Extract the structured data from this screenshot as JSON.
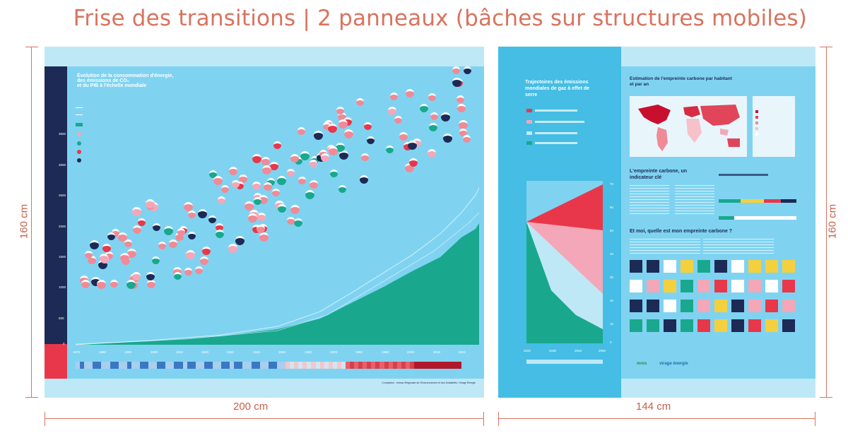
{
  "header": {
    "title": "Frise des transitions | 2 panneaux (bâches sur structures mobiles)"
  },
  "dimensions": {
    "height_label_left": "160 cm",
    "height_label_right": "160 cm",
    "width_label_left": "200 cm",
    "width_label_right": "144 cm"
  },
  "panel_left": {
    "chart_title_lines": [
      "Évolution de la consommation d'énergie,",
      "des émissions de CO₂",
      "et du PIB à l'échelle mondiale"
    ],
    "y_ticks": [
      "3500",
      "3000",
      "2500",
      "2000",
      "1500",
      "1000",
      "500",
      "0"
    ],
    "x_ticks": [
      "1870",
      "1880",
      "1890",
      "1900",
      "1910",
      "1920",
      "1930",
      "1940",
      "1950",
      "1960",
      "1970",
      "1980",
      "1990",
      "2000",
      "2010",
      "2022"
    ],
    "credits": "Conception : réseau Régionale de l'Environnement et des Solidarités / Virage Énergie"
  },
  "panel_right": {
    "left_col_title": "Trajectoires des émissions mondiales de gaz à effet de serre",
    "chart_x_ticks": [
      "2020",
      "2030",
      "2040",
      "2050"
    ],
    "chart_y_ticks": [
      "70",
      "60",
      "50",
      "40",
      "30",
      "20",
      "10",
      "0"
    ],
    "section_map_title": "Estimation de l'empreinte carbone par habitant et par an",
    "section_indicator_title": "L'empreinte carbone, un indicateur clé",
    "section_question_title": "Et moi, quelle est mon empreinte carbone ?",
    "logos": [
      "mres",
      "virage énergie"
    ]
  },
  "colors": {
    "accent": "#d9735e",
    "panel_bg": "#7fd3f1",
    "navy": "#1c2a55",
    "teal": "#19a88e",
    "red": "#e8374a",
    "pink": "#f3a7b8"
  }
}
